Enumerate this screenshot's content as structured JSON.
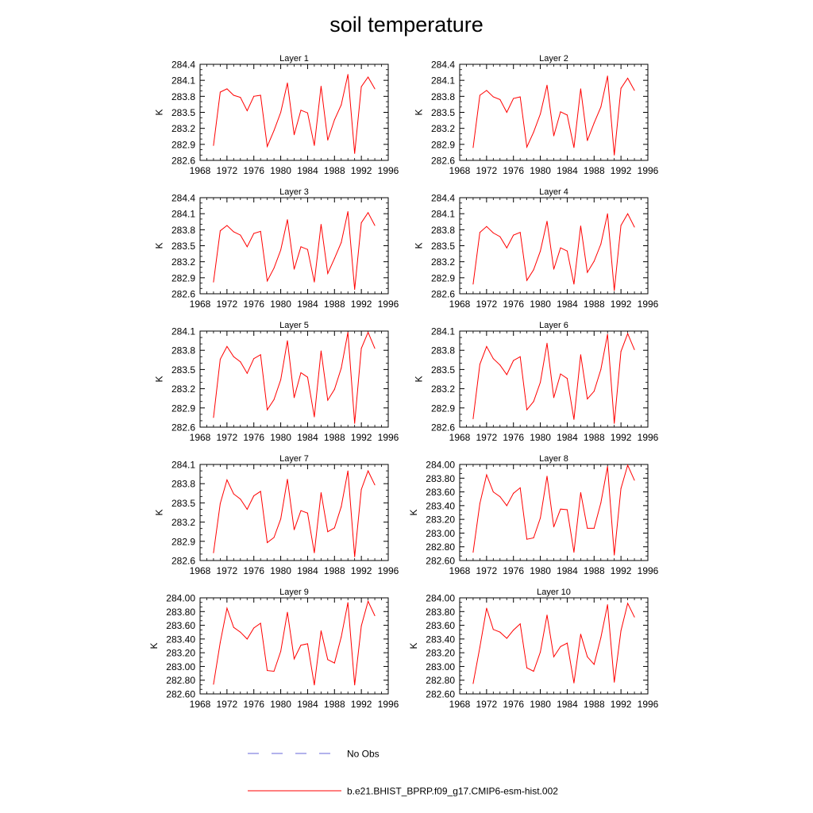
{
  "title": "soil temperature",
  "legend": {
    "placement": "bottom-center",
    "entries": [
      {
        "label": "No Obs",
        "color": "#3333cc",
        "style": "dashed"
      },
      {
        "label": "b.e21.BHIST_BPRP.f09_g17.CMIP6-esm-hist.002",
        "color": "#ff0000",
        "style": "solid"
      }
    ]
  },
  "chart_data": [
    {
      "type": "line",
      "title": "Layer 1",
      "ylabel": "K",
      "xlim": [
        1968,
        1996
      ],
      "ylim": [
        282.6,
        284.4
      ],
      "xticks": [
        "1968",
        "1972",
        "1976",
        "1980",
        "1984",
        "1988",
        "1992",
        "1996"
      ],
      "yticks": [
        "282.6",
        "282.9",
        "283.2",
        "283.5",
        "283.8",
        "284.1",
        "284.4"
      ],
      "x": [
        1970,
        1971,
        1972,
        1973,
        1974,
        1975,
        1976,
        1977,
        1978,
        1979,
        1980,
        1981,
        1982,
        1983,
        1984,
        1985,
        1986,
        1987,
        1988,
        1989,
        1990,
        1991,
        1992,
        1993,
        1994
      ],
      "series": [
        {
          "name": "b.e21.BHIST_BPRP.f09_g17.CMIP6-esm-hist.002",
          "color": "#ff0000",
          "values": [
            282.88,
            283.88,
            283.94,
            283.82,
            283.78,
            283.53,
            283.8,
            283.82,
            282.86,
            283.16,
            283.5,
            284.05,
            283.08,
            283.54,
            283.49,
            282.88,
            283.99,
            282.98,
            283.36,
            283.64,
            284.21,
            282.73,
            283.98,
            284.16,
            283.94
          ]
        }
      ]
    },
    {
      "type": "line",
      "title": "Layer 2",
      "ylabel": "K",
      "xlim": [
        1968,
        1996
      ],
      "ylim": [
        282.6,
        284.4
      ],
      "xticks": [
        "1968",
        "1972",
        "1976",
        "1980",
        "1984",
        "1988",
        "1992",
        "1996"
      ],
      "yticks": [
        "282.6",
        "282.9",
        "283.2",
        "283.5",
        "283.8",
        "284.1",
        "284.4"
      ],
      "x": [
        1970,
        1971,
        1972,
        1973,
        1974,
        1975,
        1976,
        1977,
        1978,
        1979,
        1980,
        1981,
        1982,
        1983,
        1984,
        1985,
        1986,
        1987,
        1988,
        1989,
        1990,
        1991,
        1992,
        1993,
        1994
      ],
      "series": [
        {
          "name": "b.e21.BHIST_BPRP.f09_g17.CMIP6-esm-hist.002",
          "color": "#ff0000",
          "values": [
            282.84,
            283.82,
            283.91,
            283.79,
            283.74,
            283.5,
            283.76,
            283.79,
            282.85,
            283.13,
            283.47,
            284.01,
            283.06,
            283.51,
            283.45,
            282.84,
            283.94,
            282.97,
            283.3,
            283.6,
            284.18,
            282.7,
            283.95,
            284.14,
            283.91
          ]
        }
      ]
    },
    {
      "type": "line",
      "title": "Layer 3",
      "ylabel": "K",
      "xlim": [
        1968,
        1996
      ],
      "ylim": [
        282.6,
        284.4
      ],
      "xticks": [
        "1968",
        "1972",
        "1976",
        "1980",
        "1984",
        "1988",
        "1992",
        "1996"
      ],
      "yticks": [
        "282.6",
        "282.9",
        "283.2",
        "283.5",
        "283.8",
        "284.1",
        "284.4"
      ],
      "x": [
        1970,
        1971,
        1972,
        1973,
        1974,
        1975,
        1976,
        1977,
        1978,
        1979,
        1980,
        1981,
        1982,
        1983,
        1984,
        1985,
        1986,
        1987,
        1988,
        1989,
        1990,
        1991,
        1992,
        1993,
        1994
      ],
      "series": [
        {
          "name": "b.e21.BHIST_BPRP.f09_g17.CMIP6-esm-hist.002",
          "color": "#ff0000",
          "values": [
            282.82,
            283.78,
            283.88,
            283.76,
            283.7,
            283.48,
            283.73,
            283.77,
            282.84,
            283.08,
            283.42,
            283.99,
            283.06,
            283.48,
            283.43,
            282.82,
            283.9,
            282.98,
            283.26,
            283.56,
            284.14,
            282.68,
            283.93,
            284.12,
            283.88
          ]
        }
      ]
    },
    {
      "type": "line",
      "title": "Layer 4",
      "ylabel": "K",
      "xlim": [
        1968,
        1996
      ],
      "ylim": [
        282.6,
        284.4
      ],
      "xticks": [
        "1968",
        "1972",
        "1976",
        "1980",
        "1984",
        "1988",
        "1992",
        "1996"
      ],
      "yticks": [
        "282.6",
        "282.9",
        "283.2",
        "283.5",
        "283.8",
        "284.1",
        "284.4"
      ],
      "x": [
        1970,
        1971,
        1972,
        1973,
        1974,
        1975,
        1976,
        1977,
        1978,
        1979,
        1980,
        1981,
        1982,
        1983,
        1984,
        1985,
        1986,
        1987,
        1988,
        1989,
        1990,
        1991,
        1992,
        1993,
        1994
      ],
      "series": [
        {
          "name": "b.e21.BHIST_BPRP.f09_g17.CMIP6-esm-hist.002",
          "color": "#ff0000",
          "values": [
            282.78,
            283.75,
            283.86,
            283.74,
            283.67,
            283.46,
            283.7,
            283.75,
            282.85,
            283.05,
            283.4,
            283.96,
            283.06,
            283.46,
            283.4,
            282.78,
            283.87,
            283.0,
            283.21,
            283.53,
            284.1,
            282.66,
            283.88,
            284.1,
            283.85
          ]
        }
      ]
    },
    {
      "type": "line",
      "title": "Layer 5",
      "ylabel": "K",
      "xlim": [
        1968,
        1996
      ],
      "ylim": [
        282.6,
        284.1
      ],
      "xticks": [
        "1968",
        "1972",
        "1976",
        "1980",
        "1984",
        "1988",
        "1992",
        "1996"
      ],
      "yticks": [
        "282.6",
        "282.9",
        "283.2",
        "283.5",
        "283.8",
        "284.1"
      ],
      "x": [
        1970,
        1971,
        1972,
        1973,
        1974,
        1975,
        1976,
        1977,
        1978,
        1979,
        1980,
        1981,
        1982,
        1983,
        1984,
        1985,
        1986,
        1987,
        1988,
        1989,
        1990,
        1991,
        1992,
        1993,
        1994
      ],
      "series": [
        {
          "name": "b.e21.BHIST_BPRP.f09_g17.CMIP6-esm-hist.002",
          "color": "#ff0000",
          "values": [
            282.75,
            283.66,
            283.86,
            283.7,
            283.62,
            283.44,
            283.67,
            283.73,
            282.87,
            283.03,
            283.34,
            283.95,
            283.06,
            283.45,
            283.38,
            282.76,
            283.79,
            283.02,
            283.19,
            283.52,
            284.08,
            282.66,
            283.83,
            284.08,
            283.83
          ]
        }
      ]
    },
    {
      "type": "line",
      "title": "Layer 6",
      "ylabel": "K",
      "xlim": [
        1968,
        1996
      ],
      "ylim": [
        282.6,
        284.1
      ],
      "xticks": [
        "1968",
        "1972",
        "1976",
        "1980",
        "1984",
        "1988",
        "1992",
        "1996"
      ],
      "yticks": [
        "282.6",
        "282.9",
        "283.2",
        "283.5",
        "283.8",
        "284.1"
      ],
      "x": [
        1970,
        1971,
        1972,
        1973,
        1974,
        1975,
        1976,
        1977,
        1978,
        1979,
        1980,
        1981,
        1982,
        1983,
        1984,
        1985,
        1986,
        1987,
        1988,
        1989,
        1990,
        1991,
        1992,
        1993,
        1994
      ],
      "series": [
        {
          "name": "b.e21.BHIST_BPRP.f09_g17.CMIP6-esm-hist.002",
          "color": "#ff0000",
          "values": [
            282.73,
            283.58,
            283.86,
            283.67,
            283.57,
            283.42,
            283.64,
            283.7,
            282.87,
            283.0,
            283.3,
            283.91,
            283.06,
            283.43,
            283.36,
            282.72,
            283.73,
            283.04,
            283.16,
            283.5,
            284.05,
            282.66,
            283.78,
            284.06,
            283.81
          ]
        }
      ]
    },
    {
      "type": "line",
      "title": "Layer 7",
      "ylabel": "K",
      "xlim": [
        1968,
        1996
      ],
      "ylim": [
        282.6,
        284.1
      ],
      "xticks": [
        "1968",
        "1972",
        "1976",
        "1980",
        "1984",
        "1988",
        "1992",
        "1996"
      ],
      "yticks": [
        "282.6",
        "282.9",
        "283.2",
        "283.5",
        "283.8",
        "284.1"
      ],
      "x": [
        1970,
        1971,
        1972,
        1973,
        1974,
        1975,
        1976,
        1977,
        1978,
        1979,
        1980,
        1981,
        1982,
        1983,
        1984,
        1985,
        1986,
        1987,
        1988,
        1989,
        1990,
        1991,
        1992,
        1993,
        1994
      ],
      "series": [
        {
          "name": "b.e21.BHIST_BPRP.f09_g17.CMIP6-esm-hist.002",
          "color": "#ff0000",
          "values": [
            282.72,
            283.49,
            283.86,
            283.64,
            283.56,
            283.4,
            283.61,
            283.68,
            282.88,
            282.96,
            283.25,
            283.87,
            283.08,
            283.38,
            283.34,
            282.72,
            283.66,
            283.05,
            283.11,
            283.44,
            284.0,
            282.66,
            283.71,
            284.0,
            283.78
          ]
        }
      ]
    },
    {
      "type": "line",
      "title": "Layer 8",
      "ylabel": "K",
      "xlim": [
        1968,
        1996
      ],
      "ylim": [
        282.6,
        284.0
      ],
      "xticks": [
        "1968",
        "1972",
        "1976",
        "1980",
        "1984",
        "1988",
        "1992",
        "1996"
      ],
      "yticks": [
        "282.60",
        "282.80",
        "283.00",
        "283.20",
        "283.40",
        "283.60",
        "283.80",
        "284.00"
      ],
      "x": [
        1970,
        1971,
        1972,
        1973,
        1974,
        1975,
        1976,
        1977,
        1978,
        1979,
        1980,
        1981,
        1982,
        1983,
        1984,
        1985,
        1986,
        1987,
        1988,
        1989,
        1990,
        1991,
        1992,
        1993,
        1994
      ],
      "series": [
        {
          "name": "b.e21.BHIST_BPRP.f09_g17.CMIP6-esm-hist.002",
          "color": "#ff0000",
          "values": [
            282.72,
            283.43,
            283.85,
            283.6,
            283.53,
            283.4,
            283.58,
            283.66,
            282.91,
            282.93,
            283.22,
            283.83,
            283.09,
            283.35,
            283.34,
            282.72,
            283.59,
            283.07,
            283.07,
            283.44,
            283.97,
            282.68,
            283.65,
            283.99,
            283.77
          ]
        }
      ]
    },
    {
      "type": "line",
      "title": "Layer 9",
      "ylabel": "K",
      "xlim": [
        1968,
        1996
      ],
      "ylim": [
        282.6,
        284.0
      ],
      "xticks": [
        "1968",
        "1972",
        "1976",
        "1980",
        "1984",
        "1988",
        "1992",
        "1996"
      ],
      "yticks": [
        "282.60",
        "282.80",
        "283.00",
        "283.20",
        "283.40",
        "283.60",
        "283.80",
        "284.00"
      ],
      "x": [
        1970,
        1971,
        1972,
        1973,
        1974,
        1975,
        1976,
        1977,
        1978,
        1979,
        1980,
        1981,
        1982,
        1983,
        1984,
        1985,
        1986,
        1987,
        1988,
        1989,
        1990,
        1991,
        1992,
        1993,
        1994
      ],
      "series": [
        {
          "name": "b.e21.BHIST_BPRP.f09_g17.CMIP6-esm-hist.002",
          "color": "#ff0000",
          "values": [
            282.74,
            283.35,
            283.85,
            283.57,
            283.5,
            283.4,
            283.56,
            283.63,
            282.94,
            282.93,
            283.22,
            283.79,
            283.11,
            283.31,
            283.33,
            282.73,
            283.52,
            283.1,
            283.05,
            283.43,
            283.93,
            282.73,
            283.59,
            283.95,
            283.74
          ]
        }
      ]
    },
    {
      "type": "line",
      "title": "Layer 10",
      "ylabel": "K",
      "xlim": [
        1968,
        1996
      ],
      "ylim": [
        282.6,
        284.0
      ],
      "xticks": [
        "1968",
        "1972",
        "1976",
        "1980",
        "1984",
        "1988",
        "1992",
        "1996"
      ],
      "yticks": [
        "282.60",
        "282.80",
        "283.00",
        "283.20",
        "283.40",
        "283.60",
        "283.80",
        "284.00"
      ],
      "x": [
        1970,
        1971,
        1972,
        1973,
        1974,
        1975,
        1976,
        1977,
        1978,
        1979,
        1980,
        1981,
        1982,
        1983,
        1984,
        1985,
        1986,
        1987,
        1988,
        1989,
        1990,
        1991,
        1992,
        1993,
        1994
      ],
      "series": [
        {
          "name": "b.e21.BHIST_BPRP.f09_g17.CMIP6-esm-hist.002",
          "color": "#ff0000",
          "values": [
            282.75,
            283.28,
            283.85,
            283.54,
            283.5,
            283.41,
            283.53,
            283.62,
            282.98,
            282.93,
            283.21,
            283.75,
            283.14,
            283.29,
            283.34,
            282.76,
            283.47,
            283.14,
            283.03,
            283.42,
            283.9,
            282.77,
            283.52,
            283.92,
            283.72
          ]
        }
      ]
    }
  ]
}
